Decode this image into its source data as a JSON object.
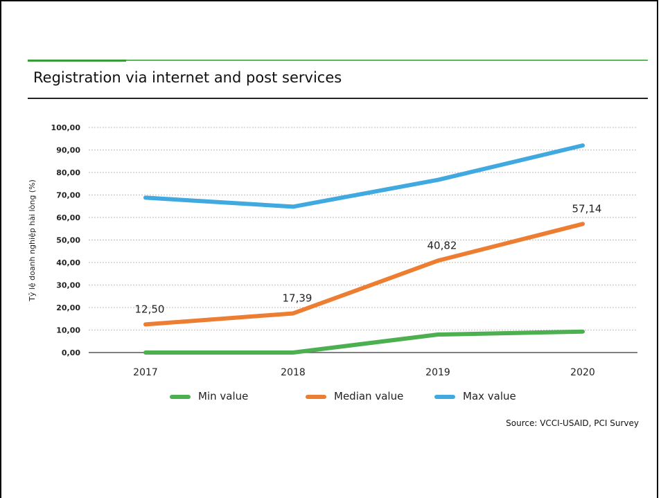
{
  "slide": {
    "title": "Registration via internet and post services",
    "source": "Source: VCCI-USAID, PCI Survey"
  },
  "chart_data": {
    "type": "line",
    "title": "",
    "xlabel": "",
    "ylabel": "Tỷ lệ doanh nghiệp hài lòng (%)",
    "x": [
      "2017",
      "2018",
      "2019",
      "2020"
    ],
    "ylim": [
      0,
      100
    ],
    "y_ticks": [
      "0,00",
      "10,00",
      "20,00",
      "30,00",
      "40,00",
      "50,00",
      "60,00",
      "70,00",
      "80,00",
      "90,00",
      "100,00"
    ],
    "grid": true,
    "legend_position": "bottom",
    "series": [
      {
        "name": "Min value",
        "color": "#4caf50",
        "values": [
          0.0,
          0.0,
          8.0,
          9.3
        ],
        "labels": [
          "",
          "",
          "",
          ""
        ]
      },
      {
        "name": "Median value",
        "color": "#ed7d31",
        "values": [
          12.5,
          17.39,
          40.82,
          57.14
        ],
        "labels": [
          "12,50",
          "17,39",
          "40,82",
          "57,14"
        ]
      },
      {
        "name": "Max value",
        "color": "#3fa9e0",
        "values": [
          68.8,
          64.8,
          76.7,
          92.0
        ],
        "labels": [
          "",
          "",
          "",
          ""
        ]
      }
    ]
  }
}
